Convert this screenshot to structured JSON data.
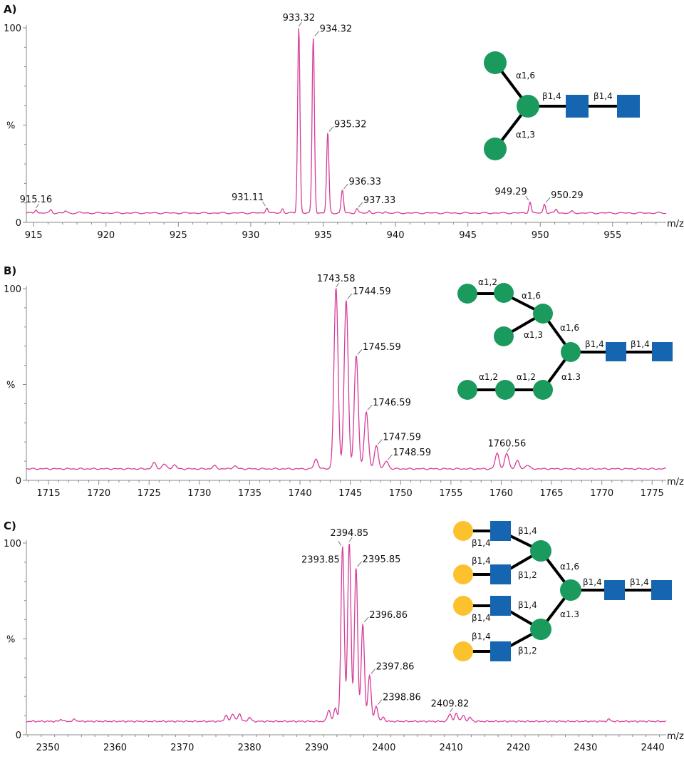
{
  "colors": {
    "spectrum": "#d63c9a",
    "mannose": "#1a9a5c",
    "glcnac": "#1565b0",
    "galactose": "#fcc22d"
  },
  "chart_data": [
    {
      "type": "line",
      "panel_label": "A)",
      "xlabel": "m/z",
      "ylabel": "%",
      "ylim": [
        0,
        100
      ],
      "y_ticks": [
        "0",
        "100"
      ],
      "xlim": [
        914.5,
        958.7
      ],
      "x_major": 5,
      "x_minor": 1,
      "x_ticks": [
        915,
        920,
        925,
        930,
        935,
        940,
        945,
        950,
        955
      ],
      "baseline": 4.8,
      "peak_width": 0.08,
      "peaks": [
        {
          "mz": 915.16,
          "y": 6.6,
          "label": "915.16",
          "pos": "center"
        },
        {
          "mz": 916.2,
          "y": 6.5
        },
        {
          "mz": 917.2,
          "y": 5.8
        },
        {
          "mz": 918.2,
          "y": 5.2
        },
        {
          "mz": 931.11,
          "y": 7.7,
          "label": "931.11",
          "pos": "left"
        },
        {
          "mz": 932.2,
          "y": 7
        },
        {
          "mz": 933.32,
          "y": 100,
          "label": "933.32",
          "pos": "center"
        },
        {
          "mz": 934.32,
          "y": 95,
          "label": "934.32",
          "pos": "right"
        },
        {
          "mz": 935.32,
          "y": 46,
          "label": "935.32",
          "pos": "right"
        },
        {
          "mz": 936.33,
          "y": 16.5,
          "label": "936.33",
          "pos": "right"
        },
        {
          "mz": 937.33,
          "y": 7,
          "label": "937.33",
          "pos": "right"
        },
        {
          "mz": 938.2,
          "y": 6
        },
        {
          "mz": 939.3,
          "y": 5.6
        },
        {
          "mz": 949.29,
          "y": 10.6,
          "label": "949.29",
          "pos": "left"
        },
        {
          "mz": 950.29,
          "y": 9.5,
          "label": "950.29",
          "pos": "right"
        },
        {
          "mz": 951.1,
          "y": 6.8
        },
        {
          "mz": 952.2,
          "y": 5.6
        }
      ],
      "glycan": {
        "links": [
          "α1,6",
          "β1,4",
          "β1,4",
          "α1,3"
        ]
      }
    },
    {
      "type": "line",
      "panel_label": "B)",
      "xlabel": "m/z",
      "ylabel": "%",
      "ylim": [
        0,
        100
      ],
      "y_ticks": [
        "0",
        "100"
      ],
      "xlim": [
        1712.8,
        1776.4
      ],
      "x_major": 5,
      "x_minor": 1,
      "x_ticks": [
        1715,
        1720,
        1725,
        1730,
        1735,
        1740,
        1745,
        1750,
        1755,
        1760,
        1765,
        1770,
        1775
      ],
      "baseline": 6,
      "peak_width": 0.2,
      "peaks": [
        {
          "mz": 1725.5,
          "y": 9
        },
        {
          "mz": 1726.5,
          "y": 8.5
        },
        {
          "mz": 1727.5,
          "y": 8
        },
        {
          "mz": 1731.5,
          "y": 7.5
        },
        {
          "mz": 1733.5,
          "y": 7.5
        },
        {
          "mz": 1741.6,
          "y": 11
        },
        {
          "mz": 1743.58,
          "y": 100,
          "label": "1743.58",
          "pos": "center"
        },
        {
          "mz": 1744.59,
          "y": 94,
          "label": "1744.59",
          "pos": "right"
        },
        {
          "mz": 1745.59,
          "y": 65,
          "label": "1745.59",
          "pos": "right"
        },
        {
          "mz": 1746.59,
          "y": 36,
          "label": "1746.59",
          "pos": "right"
        },
        {
          "mz": 1747.59,
          "y": 18,
          "label": "1747.59",
          "pos": "right"
        },
        {
          "mz": 1748.59,
          "y": 10,
          "label": "1748.59",
          "pos": "right"
        },
        {
          "mz": 1759.6,
          "y": 14
        },
        {
          "mz": 1760.56,
          "y": 14,
          "label": "1760.56",
          "pos": "center"
        },
        {
          "mz": 1761.6,
          "y": 10
        },
        {
          "mz": 1762.6,
          "y": 8
        }
      ],
      "glycan": {
        "links": [
          "α1,2",
          "α1,6",
          "α1,3",
          "α1,6",
          "β1,4",
          "β1,4",
          "α1,2",
          "α1,2",
          "α1.3"
        ]
      }
    },
    {
      "type": "line",
      "panel_label": "C)",
      "xlabel": "m/z",
      "ylabel": "%",
      "ylim": [
        0,
        100
      ],
      "y_ticks": [
        "0",
        "100"
      ],
      "xlim": [
        2346.8,
        2442
      ],
      "x_major": 10,
      "x_minor": 2,
      "x_ticks": [
        2350,
        2360,
        2370,
        2380,
        2390,
        2400,
        2410,
        2420,
        2430,
        2440
      ],
      "baseline": 7,
      "peak_width": 0.24,
      "peaks": [
        {
          "mz": 2352,
          "y": 8
        },
        {
          "mz": 2354,
          "y": 8
        },
        {
          "mz": 2376.5,
          "y": 10
        },
        {
          "mz": 2377.5,
          "y": 11
        },
        {
          "mz": 2378.5,
          "y": 11
        },
        {
          "mz": 2380,
          "y": 9
        },
        {
          "mz": 2391.8,
          "y": 13
        },
        {
          "mz": 2392.8,
          "y": 14
        },
        {
          "mz": 2393.85,
          "y": 98,
          "label": "2393.85",
          "pos": "left"
        },
        {
          "mz": 2394.85,
          "y": 100,
          "label": "2394.85",
          "pos": "center"
        },
        {
          "mz": 2395.85,
          "y": 87,
          "label": "2395.85",
          "pos": "right"
        },
        {
          "mz": 2396.86,
          "y": 58,
          "label": "2396.86",
          "pos": "right"
        },
        {
          "mz": 2397.86,
          "y": 31,
          "label": "2397.86",
          "pos": "right"
        },
        {
          "mz": 2398.86,
          "y": 15,
          "label": "2398.86",
          "pos": "right"
        },
        {
          "mz": 2399.9,
          "y": 9
        },
        {
          "mz": 2409.82,
          "y": 11,
          "label": "2409.82",
          "pos": "center"
        },
        {
          "mz": 2410.8,
          "y": 11
        },
        {
          "mz": 2411.8,
          "y": 10
        },
        {
          "mz": 2412.8,
          "y": 9
        },
        {
          "mz": 2433.5,
          "y": 8
        }
      ],
      "glycan": {
        "links": [
          "β1,4",
          "β1,4",
          "β1,4",
          "β1,2",
          "β1,4",
          "β1,4",
          "β1,4",
          "β1,2",
          "α1,6",
          "α1.3",
          "β1,4",
          "β1,4"
        ]
      }
    }
  ]
}
